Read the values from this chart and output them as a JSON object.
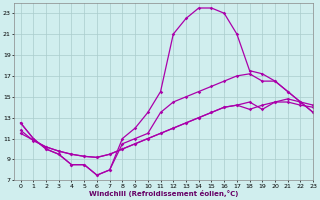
{
  "xlabel": "Windchill (Refroidissement éolien,°C)",
  "bg_color": "#d0eeee",
  "line_color": "#aa00aa",
  "grid_color": "#aacccc",
  "xlim": [
    -0.5,
    23
  ],
  "ylim": [
    7,
    24
  ],
  "xticks": [
    0,
    1,
    2,
    3,
    4,
    5,
    6,
    7,
    8,
    9,
    10,
    11,
    12,
    13,
    14,
    15,
    16,
    17,
    18,
    19,
    20,
    21,
    22,
    23
  ],
  "yticks": [
    7,
    9,
    11,
    13,
    15,
    17,
    19,
    21,
    23
  ],
  "line1_x": [
    0,
    1,
    2,
    3,
    4,
    5,
    6,
    7,
    8,
    9,
    10,
    11,
    12,
    13,
    14,
    15,
    16,
    17,
    18,
    19,
    20,
    21,
    22,
    23
  ],
  "line1_y": [
    12.5,
    11.0,
    10.0,
    9.5,
    8.5,
    8.5,
    7.5,
    8.0,
    11.0,
    12.0,
    13.5,
    15.5,
    21.0,
    22.5,
    23.5,
    23.5,
    23.0,
    21.0,
    17.5,
    17.2,
    16.5,
    15.5,
    14.5,
    13.5
  ],
  "line2_x": [
    0,
    1,
    2,
    3,
    4,
    5,
    6,
    7,
    8,
    9,
    10,
    11,
    12,
    13,
    14,
    15,
    16,
    17,
    18,
    19,
    20,
    21,
    22,
    23
  ],
  "line2_y": [
    12.5,
    11.0,
    10.0,
    9.5,
    8.5,
    8.5,
    7.5,
    8.0,
    10.5,
    11.0,
    11.5,
    13.5,
    14.5,
    15.0,
    15.5,
    16.0,
    16.5,
    17.0,
    17.2,
    16.5,
    16.5,
    15.5,
    14.5,
    13.5
  ],
  "line3_x": [
    0,
    2,
    3,
    4,
    5,
    6,
    7,
    8,
    9,
    10,
    11,
    12,
    13,
    14,
    15,
    16,
    17,
    18,
    19,
    20,
    21,
    22,
    23
  ],
  "line3_y": [
    11.5,
    10.2,
    9.8,
    9.5,
    9.3,
    9.2,
    9.5,
    10.0,
    10.5,
    11.0,
    11.5,
    12.0,
    12.5,
    13.0,
    13.5,
    14.0,
    14.2,
    14.5,
    13.8,
    14.5,
    14.8,
    14.5,
    14.2
  ],
  "line4_x": [
    0,
    1,
    2,
    3,
    4,
    5,
    6,
    7,
    8,
    9,
    10,
    11,
    12,
    13,
    14,
    15,
    16,
    17,
    18,
    19,
    20,
    21,
    22,
    23
  ],
  "line4_y": [
    11.8,
    10.8,
    10.2,
    9.8,
    9.5,
    9.3,
    9.2,
    9.5,
    10.0,
    10.5,
    11.0,
    11.5,
    12.0,
    12.5,
    13.0,
    13.5,
    14.0,
    14.2,
    13.8,
    14.2,
    14.5,
    14.5,
    14.2,
    14.0
  ]
}
